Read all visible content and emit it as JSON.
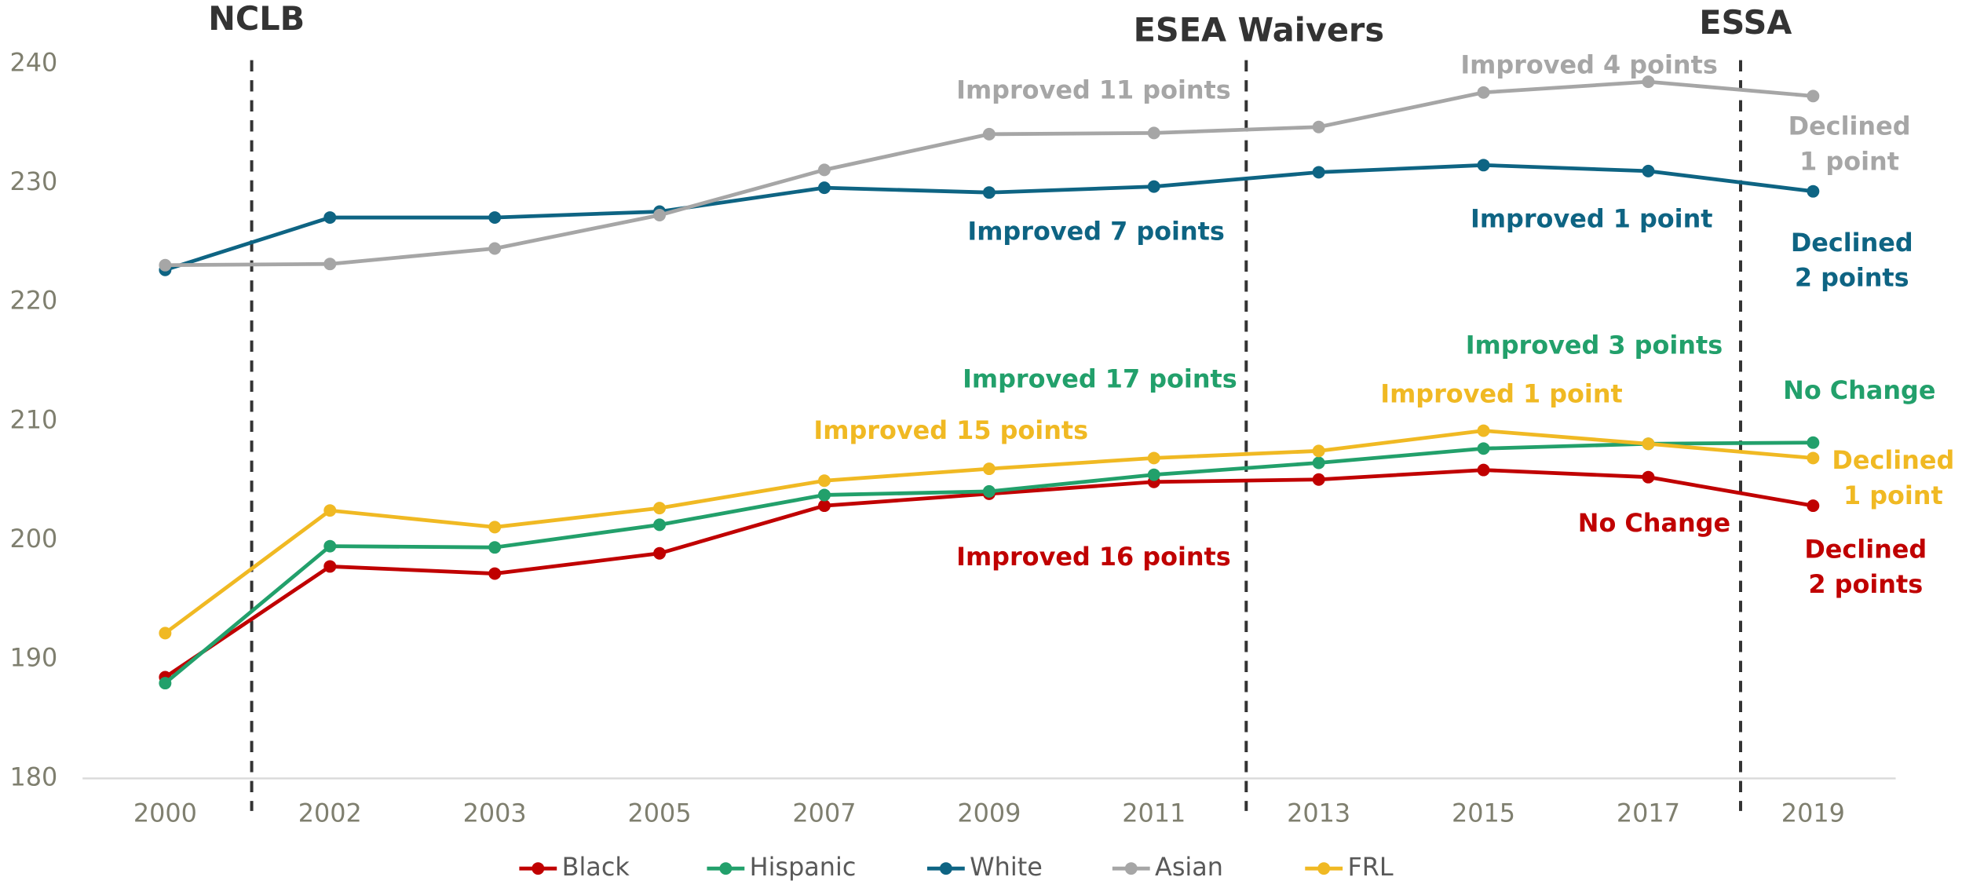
{
  "chart_data": {
    "type": "line",
    "categories": [
      "2000",
      "2002",
      "2003",
      "2005",
      "2007",
      "2009",
      "2011",
      "2013",
      "2015",
      "2017",
      "2019"
    ],
    "ylim": [
      180,
      240
    ],
    "yticks": [
      180,
      190,
      200,
      210,
      220,
      230,
      240
    ],
    "grid": false,
    "legend": "bottom",
    "series": [
      {
        "name": "Black",
        "color": "#c00000",
        "values": [
          188.5,
          197.8,
          197.2,
          198.9,
          202.9,
          203.9,
          204.9,
          205.1,
          205.9,
          205.3,
          202.9
        ]
      },
      {
        "name": "Hispanic",
        "color": "#22a06b",
        "values": [
          188.0,
          199.5,
          199.4,
          201.3,
          203.8,
          204.1,
          205.5,
          206.5,
          207.7,
          208.1,
          208.2
        ]
      },
      {
        "name": "White",
        "color": "#0e6483",
        "values": [
          222.7,
          227.1,
          227.1,
          227.6,
          229.6,
          229.2,
          229.7,
          230.9,
          231.5,
          231.0,
          229.3
        ]
      },
      {
        "name": "Asian",
        "color": "#a6a6a6",
        "values": [
          223.1,
          223.2,
          224.5,
          227.3,
          231.1,
          234.1,
          234.2,
          234.7,
          237.6,
          238.5,
          237.3
        ]
      },
      {
        "name": "FRL",
        "color": "#f0b923",
        "values": [
          192.2,
          202.5,
          201.1,
          202.7,
          205.0,
          206.0,
          206.9,
          207.5,
          209.2,
          208.1,
          206.9
        ]
      }
    ],
    "events": [
      "NCLB",
      "ESEA Waivers",
      "ESSA"
    ],
    "annotations": [
      {
        "lines": [
          "Improved 11 points"
        ],
        "color": "#a6a6a6"
      },
      {
        "lines": [
          "Improved 4 points"
        ],
        "color": "#a6a6a6"
      },
      {
        "lines": [
          "Declined",
          "1 point"
        ],
        "color": "#a6a6a6"
      },
      {
        "lines": [
          "Improved 7 points"
        ],
        "color": "#0e6483"
      },
      {
        "lines": [
          "Improved 1 point"
        ],
        "color": "#0e6483"
      },
      {
        "lines": [
          "Declined",
          "2 points"
        ],
        "color": "#0e6483"
      },
      {
        "lines": [
          "Improved 3 points"
        ],
        "color": "#22a06b"
      },
      {
        "lines": [
          "Improved 17 points"
        ],
        "color": "#22a06b"
      },
      {
        "lines": [
          "No Change"
        ],
        "color": "#22a06b"
      },
      {
        "lines": [
          "Improved 1 point"
        ],
        "color": "#f0b923"
      },
      {
        "lines": [
          "Improved 15 points"
        ],
        "color": "#f0b923"
      },
      {
        "lines": [
          "Declined",
          "1 point"
        ],
        "color": "#f0b923"
      },
      {
        "lines": [
          "Improved 16 points"
        ],
        "color": "#c00000"
      },
      {
        "lines": [
          "No Change"
        ],
        "color": "#c00000"
      },
      {
        "lines": [
          "Declined",
          "2 points"
        ],
        "color": "#c00000"
      }
    ]
  }
}
